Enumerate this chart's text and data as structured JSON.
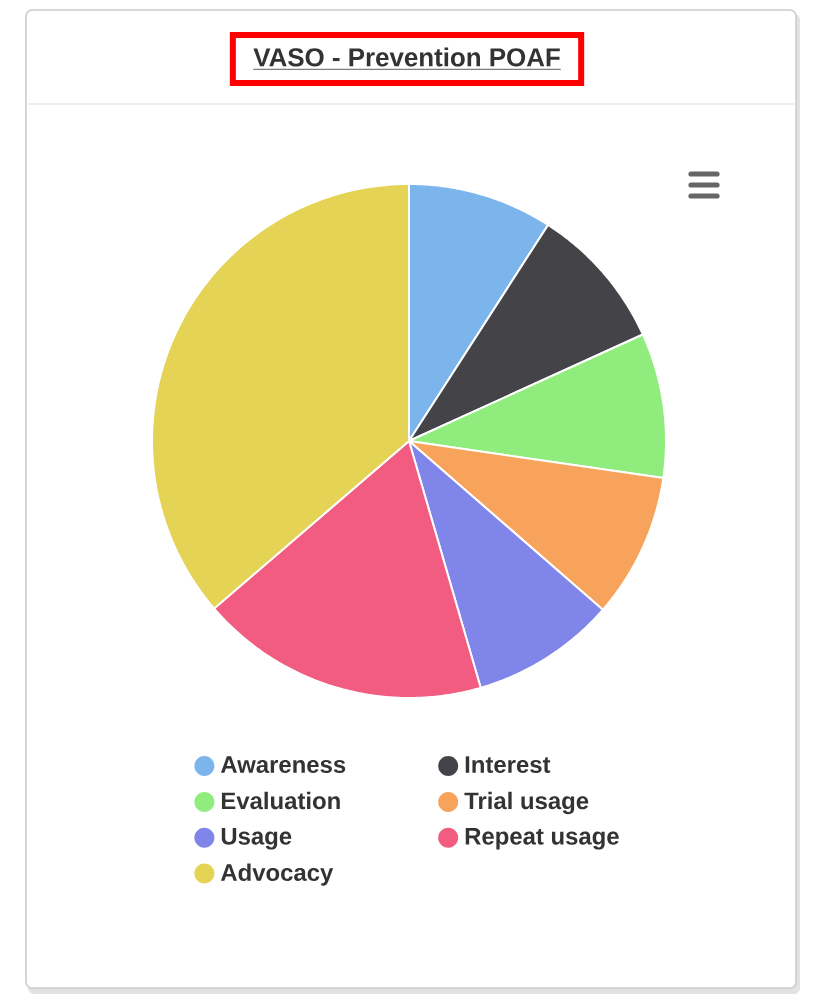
{
  "chart_data": {
    "type": "pie",
    "title": "VASO - Prevention POAF",
    "categories": [
      "Awareness",
      "Interest",
      "Evaluation",
      "Trial usage",
      "Usage",
      "Repeat usage",
      "Advocacy"
    ],
    "values": [
      9.1,
      9.1,
      9.1,
      9.1,
      9.1,
      18.2,
      36.3
    ],
    "colors": [
      "#7cb5ec",
      "#434348",
      "#90ed7d",
      "#f7a35c",
      "#8085e9",
      "#f15c80",
      "#e4d354"
    ],
    "legend": "bottom"
  }
}
